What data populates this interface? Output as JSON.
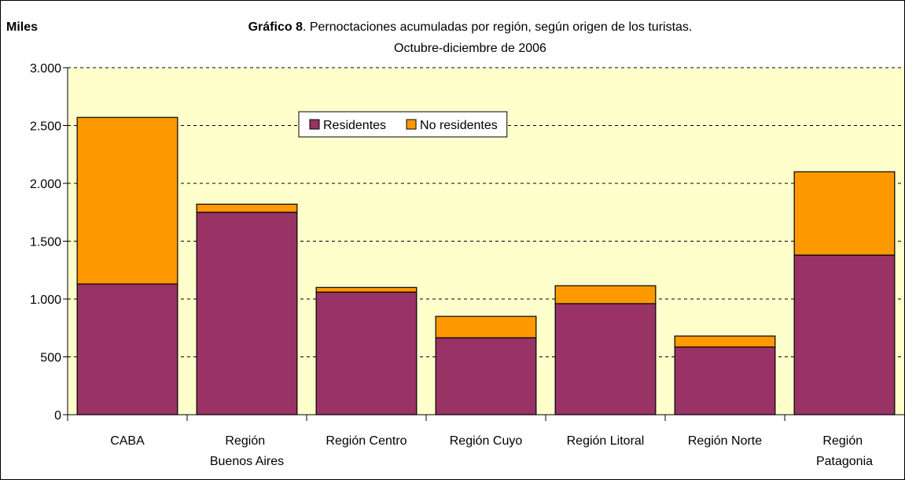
{
  "chart_data": {
    "type": "stacked_bar",
    "title_bold": "Gráfico 8",
    "title": ". Pernoctaciones acumuladas por región, según origen de los turistas.",
    "subtitle": "Octubre-diciembre de 2006",
    "y_label": "Miles",
    "categories": [
      "CABA",
      "Región Buenos Aires",
      "Región Centro",
      "Región Cuyo",
      "Región Litoral",
      "Región Norte",
      "Región Patagonia"
    ],
    "series": [
      {
        "name": "Residentes",
        "color": "#993366",
        "values": [
          1130,
          1750,
          1060,
          665,
          960,
          585,
          1380
        ]
      },
      {
        "name": "No residentes",
        "color": "#ff9900",
        "values": [
          1440,
          70,
          40,
          185,
          155,
          95,
          720
        ]
      }
    ],
    "ylim": [
      0,
      3000
    ],
    "yticks": [
      0,
      500,
      {
        "value": 1000,
        "label": "1.000"
      },
      {
        "value": 1500,
        "label": "1.500"
      },
      {
        "value": 2000,
        "label": "2.000"
      },
      {
        "value": 2500,
        "label": "2.500"
      },
      {
        "value": 3000,
        "label": "3.000"
      }
    ],
    "grid": true,
    "plot_background": "#ffffcc"
  }
}
